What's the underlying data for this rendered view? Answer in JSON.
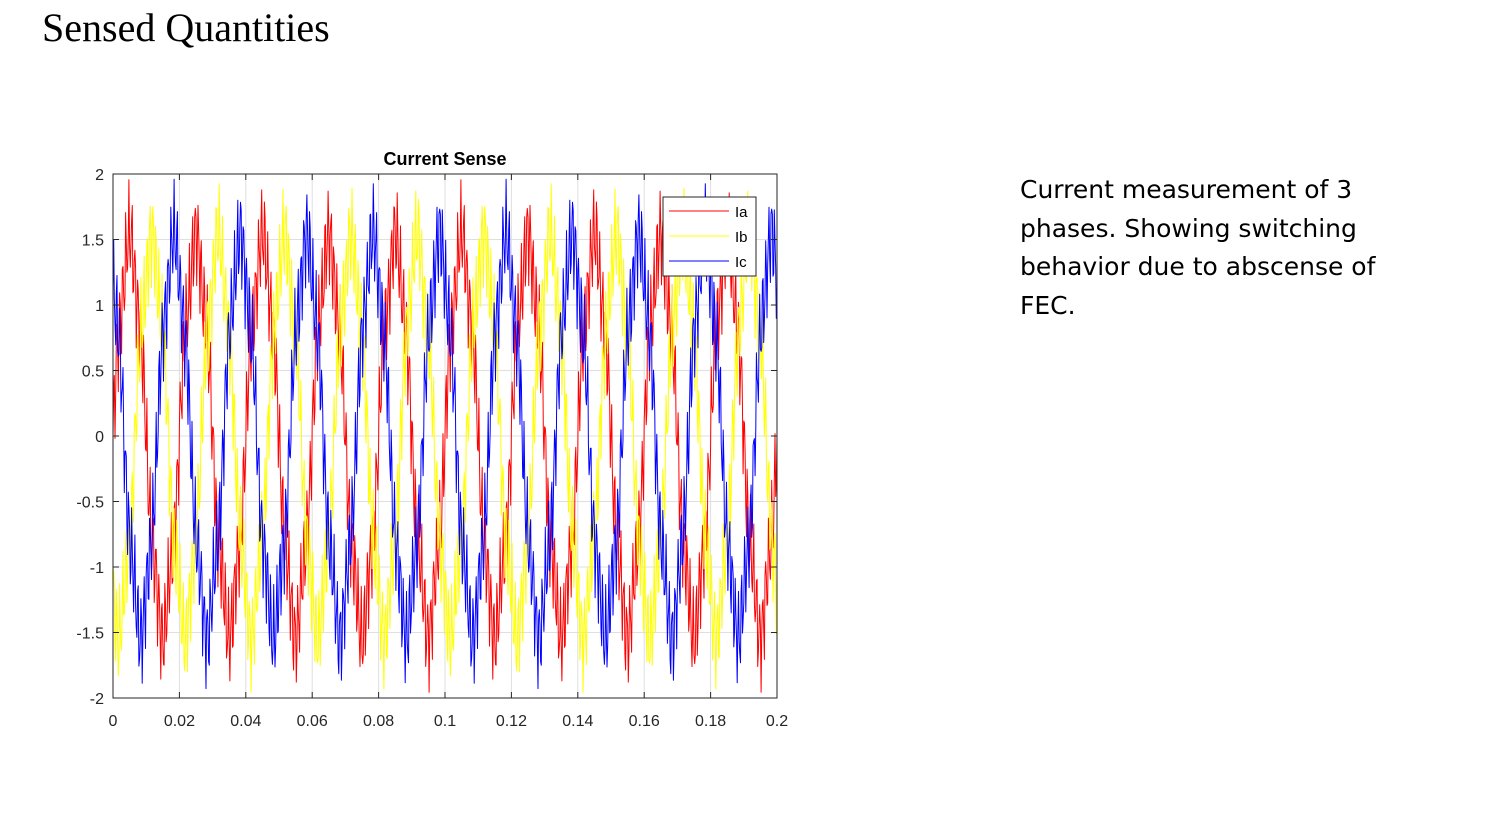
{
  "slide": {
    "title": "Sensed Quantities",
    "caption": "Current measurement of 3 phases. Showing switching behavior due to abscense of FEC."
  },
  "chart_data": {
    "type": "line",
    "title": "Current Sense",
    "xlabel": "",
    "ylabel": "",
    "xlim": [
      0,
      0.2
    ],
    "ylim": [
      -2,
      2
    ],
    "xticks": [
      0,
      0.02,
      0.04,
      0.06,
      0.08,
      0.1,
      0.12,
      0.14,
      0.16,
      0.18,
      0.2
    ],
    "xtick_labels": [
      "0",
      "0.02",
      "0.04",
      "0.06",
      "0.08",
      "0.1",
      "0.12",
      "0.14",
      "0.16",
      "0.18",
      "0.2"
    ],
    "yticks": [
      -2,
      -1.5,
      -1,
      -0.5,
      0,
      0.5,
      1,
      1.5,
      2
    ],
    "ytick_labels": [
      "-2",
      "-1.5",
      "-1",
      "-0.5",
      "0",
      "0.5",
      "1",
      "1.5",
      "2"
    ],
    "grid": true,
    "legend_position": "top-right",
    "colors": {
      "Ia": "#ff0000",
      "Ib": "#ffff00",
      "Ic": "#0000ff"
    },
    "waveform": {
      "fundamental_hz": 50,
      "switching_hz": 1100,
      "amplitude_pk": 1.45,
      "ripple_pk": 0.3,
      "sample_step_s": 0.0002
    },
    "series": [
      {
        "name": "Ia",
        "color": "#ff0000",
        "phase_deg": 0
      },
      {
        "name": "Ib",
        "color": "#ffff00",
        "phase_deg": -120
      },
      {
        "name": "Ic",
        "color": "#0000ff",
        "phase_deg": 120
      }
    ]
  }
}
